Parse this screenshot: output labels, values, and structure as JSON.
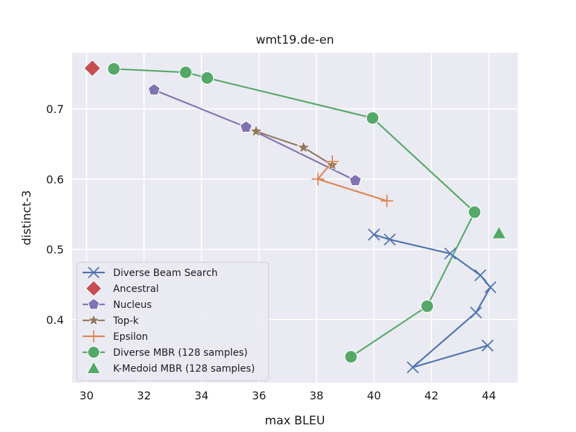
{
  "chart_data": {
    "type": "line",
    "title": "wmt19.de-en",
    "xlabel": "max BLEU",
    "ylabel": "distinct-3",
    "xlim": [
      29.5,
      45.0
    ],
    "ylim": [
      0.31,
      0.78
    ],
    "xticks": [
      30,
      32,
      34,
      36,
      38,
      40,
      42,
      44
    ],
    "yticks": [
      0.4,
      0.5,
      0.6,
      0.7
    ],
    "grid": true,
    "legend_position": "lower-left",
    "series": [
      {
        "name": "Diverse Beam Search",
        "color": "#4c72b0",
        "marker": "x",
        "x": [
          40.0,
          40.55,
          42.65,
          43.7,
          44.05,
          43.55,
          41.35,
          43.95
        ],
        "y": [
          0.521,
          0.514,
          0.494,
          0.463,
          0.446,
          0.41,
          0.332,
          0.363
        ]
      },
      {
        "name": "Ancestral",
        "color": "#c44e52",
        "marker": "diamond",
        "x": [
          30.2
        ],
        "y": [
          0.758
        ]
      },
      {
        "name": "Nucleus",
        "color": "#8172b3",
        "marker": "pentagon",
        "x": [
          32.35,
          35.55,
          39.35
        ],
        "y": [
          0.727,
          0.674,
          0.598
        ]
      },
      {
        "name": "Top-k",
        "color": "#937860",
        "marker": "star",
        "x": [
          35.9,
          37.55,
          38.55
        ],
        "y": [
          0.668,
          0.645,
          0.62
        ]
      },
      {
        "name": "Epsilon",
        "color": "#dd8452",
        "marker": "plus",
        "x": [
          38.55,
          38.05,
          40.45
        ],
        "y": [
          0.625,
          0.6,
          0.569
        ]
      },
      {
        "name": "Diverse MBR (128 samples)",
        "color": "#55a868",
        "marker": "circle",
        "x": [
          30.95,
          33.45,
          34.2,
          39.95,
          43.5,
          41.85,
          39.2
        ],
        "y": [
          0.757,
          0.752,
          0.744,
          0.687,
          0.553,
          0.419,
          0.347
        ]
      },
      {
        "name": "K-Medoid MBR (128 samples)",
        "color": "#55a868",
        "marker": "triangle",
        "x": [
          44.35
        ],
        "y": [
          0.523
        ]
      }
    ]
  }
}
